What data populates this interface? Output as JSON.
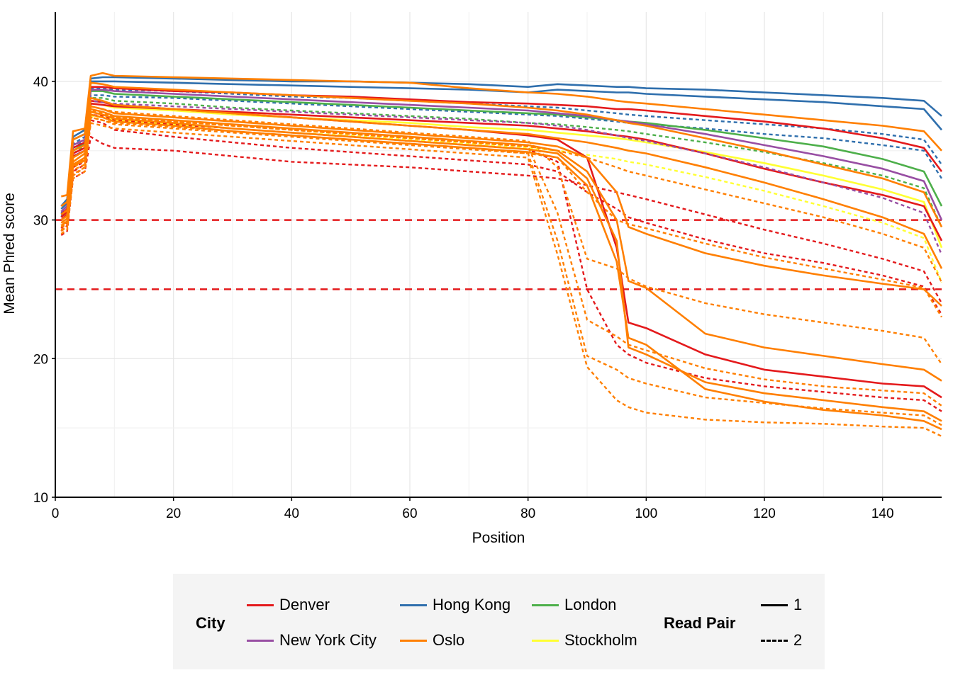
{
  "chart_data": {
    "type": "line",
    "xlabel": "Position",
    "ylabel": "Mean Phred score",
    "xlim": [
      0,
      150
    ],
    "ylim": [
      10,
      45
    ],
    "xticks": [
      0,
      20,
      40,
      60,
      80,
      100,
      120,
      140
    ],
    "yticks": [
      10,
      20,
      30,
      40
    ],
    "grid": true,
    "threshold_lines": [
      {
        "y": 30,
        "color": "#e41a1c",
        "style": "dashed"
      },
      {
        "y": 25,
        "color": "#e41a1c",
        "style": "dashed"
      }
    ],
    "x": [
      1,
      2,
      3,
      5,
      6,
      8,
      10,
      20,
      30,
      40,
      50,
      60,
      70,
      80,
      85,
      90,
      95,
      97,
      100,
      110,
      120,
      130,
      140,
      147,
      150
    ],
    "series": [
      {
        "city": "Hong Kong",
        "read_pair": "1",
        "values": [
          31.0,
          31.5,
          36.0,
          36.5,
          40.2,
          40.3,
          40.3,
          40.2,
          40.1,
          40.0,
          40.0,
          39.9,
          39.8,
          39.6,
          39.8,
          39.7,
          39.6,
          39.6,
          39.5,
          39.4,
          39.2,
          39.0,
          38.8,
          38.6,
          37.5
        ]
      },
      {
        "city": "Hong Kong",
        "read_pair": "1",
        "values": [
          30.8,
          31.2,
          35.8,
          36.2,
          40.0,
          40.0,
          40.0,
          39.9,
          39.8,
          39.7,
          39.6,
          39.5,
          39.4,
          39.2,
          39.4,
          39.3,
          39.2,
          39.2,
          39.1,
          38.9,
          38.7,
          38.5,
          38.2,
          38.0,
          36.5
        ]
      },
      {
        "city": "Hong Kong",
        "read_pair": "2",
        "values": [
          30.5,
          31.0,
          35.5,
          36.0,
          39.5,
          39.5,
          39.4,
          39.3,
          39.1,
          38.9,
          38.8,
          38.6,
          38.4,
          38.2,
          38.1,
          37.9,
          37.7,
          37.6,
          37.5,
          37.2,
          36.9,
          36.6,
          36.2,
          35.8,
          34.0
        ]
      },
      {
        "city": "Hong Kong",
        "read_pair": "2",
        "values": [
          30.3,
          30.7,
          35.2,
          35.7,
          39.0,
          39.0,
          38.9,
          38.8,
          38.6,
          38.4,
          38.2,
          38.0,
          37.8,
          37.6,
          37.5,
          37.3,
          37.1,
          37.0,
          36.9,
          36.6,
          36.2,
          35.9,
          35.4,
          35.0,
          33.0
        ]
      },
      {
        "city": "London",
        "read_pair": "1",
        "values": [
          30.2,
          30.6,
          35.0,
          35.5,
          39.3,
          39.3,
          39.1,
          38.9,
          38.7,
          38.5,
          38.3,
          38.1,
          37.9,
          37.7,
          37.6,
          37.4,
          37.2,
          37.1,
          37.0,
          36.5,
          35.9,
          35.3,
          34.4,
          33.5,
          31.0
        ]
      },
      {
        "city": "London",
        "read_pair": "2",
        "values": [
          30.0,
          30.4,
          34.8,
          35.3,
          38.8,
          38.8,
          38.6,
          38.4,
          38.1,
          37.9,
          37.7,
          37.5,
          37.3,
          37.0,
          36.9,
          36.7,
          36.5,
          36.4,
          36.2,
          35.6,
          34.9,
          34.1,
          33.2,
          32.3,
          29.5
        ]
      },
      {
        "city": "Stockholm",
        "read_pair": "1",
        "values": [
          30.0,
          30.3,
          34.5,
          35.0,
          38.4,
          38.3,
          38.1,
          37.9,
          37.6,
          37.4,
          37.2,
          37.0,
          36.7,
          36.5,
          36.3,
          36.1,
          35.9,
          35.8,
          35.6,
          34.9,
          34.1,
          33.2,
          32.2,
          31.3,
          28.0
        ]
      },
      {
        "city": "Stockholm",
        "read_pair": "2",
        "values": [
          29.5,
          29.8,
          34.0,
          34.5,
          37.5,
          37.4,
          37.2,
          36.9,
          36.6,
          36.3,
          36.1,
          35.8,
          35.5,
          35.2,
          35.0,
          34.7,
          34.4,
          34.2,
          34.0,
          33.1,
          32.1,
          31.0,
          29.8,
          28.7,
          25.5
        ]
      },
      {
        "city": "Denver",
        "read_pair": "1",
        "values": [
          30.4,
          30.8,
          35.2,
          35.6,
          39.6,
          39.6,
          39.5,
          39.3,
          39.2,
          39.0,
          38.9,
          38.7,
          38.5,
          38.4,
          38.3,
          38.2,
          38.0,
          38.0,
          37.9,
          37.5,
          37.1,
          36.6,
          35.9,
          35.2,
          33.5
        ]
      },
      {
        "city": "Denver",
        "read_pair": "1",
        "values": [
          30.0,
          30.4,
          34.6,
          35.0,
          38.4,
          38.3,
          38.2,
          38.0,
          37.8,
          37.6,
          37.4,
          37.2,
          37.0,
          36.8,
          36.6,
          36.4,
          36.1,
          36.0,
          35.8,
          34.8,
          33.7,
          32.7,
          31.8,
          31.0,
          28.5
        ]
      },
      {
        "city": "Denver",
        "read_pair": "1",
        "values": [
          30.2,
          30.6,
          34.8,
          35.2,
          38.6,
          38.5,
          38.3,
          38.0,
          37.7,
          37.4,
          37.1,
          36.8,
          36.5,
          36.1,
          35.8,
          34.5,
          28.0,
          22.6,
          22.2,
          20.3,
          19.2,
          18.7,
          18.2,
          18.0,
          17.2
        ]
      },
      {
        "city": "Denver",
        "read_pair": "2",
        "values": [
          29.2,
          29.6,
          33.5,
          34.0,
          37.2,
          37.0,
          36.5,
          36.0,
          35.6,
          35.2,
          34.9,
          34.6,
          34.3,
          34.0,
          33.5,
          32.0,
          30.8,
          30.2,
          29.8,
          28.6,
          27.6,
          26.9,
          26.0,
          25.2,
          23.2
        ]
      },
      {
        "city": "Denver",
        "read_pair": "2",
        "values": [
          28.9,
          29.2,
          33.0,
          33.5,
          36.0,
          35.5,
          35.2,
          35.0,
          34.6,
          34.2,
          34.0,
          33.8,
          33.5,
          33.2,
          33.0,
          32.5,
          32.0,
          31.8,
          31.5,
          30.4,
          29.3,
          28.3,
          27.2,
          26.3,
          24.0
        ]
      },
      {
        "city": "Denver",
        "read_pair": "2",
        "values": [
          29.4,
          29.8,
          33.8,
          34.2,
          37.6,
          37.5,
          37.2,
          36.9,
          36.6,
          36.3,
          36.0,
          35.7,
          35.4,
          35.1,
          34.2,
          25.0,
          21.0,
          20.3,
          19.7,
          18.6,
          18.0,
          17.6,
          17.2,
          17.0,
          16.2
        ]
      },
      {
        "city": "New York City",
        "read_pair": "1",
        "values": [
          30.6,
          31.0,
          35.4,
          35.8,
          39.4,
          39.4,
          39.3,
          39.1,
          38.9,
          38.7,
          38.5,
          38.3,
          38.1,
          37.9,
          37.7,
          37.5,
          37.2,
          37.1,
          36.9,
          36.2,
          35.4,
          34.6,
          33.7,
          32.8,
          30.0
        ]
      },
      {
        "city": "New York City",
        "read_pair": "2",
        "values": [
          30.0,
          30.3,
          34.6,
          35.0,
          38.6,
          38.5,
          38.4,
          38.2,
          38.0,
          37.8,
          37.6,
          37.4,
          37.2,
          37.0,
          36.8,
          36.5,
          36.1,
          35.9,
          35.7,
          34.8,
          33.8,
          32.7,
          31.6,
          30.5,
          27.5
        ]
      },
      {
        "city": "Oslo",
        "read_pair": "1",
        "values": [
          31.7,
          31.8,
          36.4,
          36.6,
          40.4,
          40.6,
          40.4,
          40.3,
          40.2,
          40.1,
          40.0,
          39.9,
          39.5,
          39.2,
          39.1,
          38.9,
          38.6,
          38.5,
          38.4,
          38.0,
          37.6,
          37.2,
          36.8,
          36.4,
          35.0
        ]
      },
      {
        "city": "Oslo",
        "read_pair": "1",
        "values": [
          31.0,
          31.3,
          35.8,
          36.2,
          39.9,
          39.8,
          39.6,
          39.4,
          39.2,
          39.0,
          38.8,
          38.6,
          38.4,
          38.1,
          37.9,
          37.6,
          37.2,
          37.0,
          36.8,
          35.9,
          35.0,
          34.0,
          33.0,
          32.0,
          29.5
        ]
      },
      {
        "city": "Oslo",
        "read_pair": "1",
        "values": [
          30.4,
          30.7,
          35.0,
          35.4,
          38.8,
          38.6,
          38.3,
          38.0,
          37.7,
          37.4,
          37.1,
          36.8,
          36.5,
          36.2,
          35.9,
          35.6,
          35.2,
          35.0,
          34.8,
          33.8,
          32.7,
          31.5,
          30.2,
          29.0,
          26.5
        ]
      },
      {
        "city": "Oslo",
        "read_pair": "1",
        "values": [
          30.0,
          30.3,
          34.5,
          35.0,
          38.2,
          38.0,
          37.7,
          37.4,
          37.1,
          36.8,
          36.5,
          36.2,
          35.9,
          35.6,
          35.3,
          34.5,
          32.0,
          29.5,
          29.0,
          27.6,
          26.7,
          26.0,
          25.4,
          25.0,
          23.8
        ]
      },
      {
        "city": "Oslo",
        "read_pair": "1",
        "values": [
          29.8,
          30.1,
          34.2,
          34.8,
          38.0,
          37.8,
          37.5,
          37.2,
          36.9,
          36.6,
          36.3,
          36.0,
          35.7,
          35.4,
          35.0,
          33.5,
          30.0,
          25.6,
          25.1,
          21.8,
          20.8,
          20.2,
          19.6,
          19.2,
          18.4
        ]
      },
      {
        "city": "Oslo",
        "read_pair": "1",
        "values": [
          29.6,
          29.9,
          34.0,
          34.5,
          37.8,
          37.6,
          37.3,
          37.0,
          36.6,
          36.3,
          36.0,
          35.7,
          35.4,
          35.1,
          34.8,
          33.0,
          28.5,
          20.8,
          20.3,
          18.3,
          17.5,
          17.0,
          16.5,
          16.2,
          15.5
        ]
      },
      {
        "city": "Oslo",
        "read_pair": "1",
        "values": [
          29.6,
          29.9,
          33.9,
          34.3,
          37.6,
          37.4,
          37.1,
          36.8,
          36.4,
          36.1,
          35.8,
          35.5,
          35.2,
          34.9,
          34.5,
          32.5,
          27.0,
          21.5,
          21.0,
          17.8,
          16.9,
          16.3,
          15.9,
          15.5,
          14.9
        ]
      },
      {
        "city": "Oslo",
        "read_pair": "2",
        "values": [
          29.8,
          30.0,
          34.0,
          34.4,
          38.2,
          38.0,
          37.8,
          37.5,
          37.2,
          36.9,
          36.6,
          36.3,
          36.0,
          35.7,
          33.8,
          27.2,
          26.5,
          25.8,
          25.2,
          24.0,
          23.2,
          22.6,
          22.0,
          21.5,
          19.6
        ]
      },
      {
        "city": "Oslo",
        "read_pair": "2",
        "values": [
          29.5,
          29.7,
          33.6,
          34.0,
          37.8,
          37.6,
          37.4,
          37.1,
          36.8,
          36.5,
          36.2,
          35.9,
          35.6,
          35.3,
          30.5,
          22.8,
          21.6,
          21.0,
          20.6,
          19.3,
          18.5,
          18.0,
          17.7,
          17.5,
          16.6
        ]
      },
      {
        "city": "Oslo",
        "read_pair": "2",
        "values": [
          29.3,
          29.5,
          33.2,
          33.8,
          37.4,
          37.2,
          37.0,
          36.7,
          36.4,
          36.1,
          35.8,
          35.5,
          35.2,
          34.8,
          28.5,
          20.2,
          19.2,
          18.6,
          18.2,
          17.2,
          16.8,
          16.4,
          16.1,
          15.9,
          15.2
        ]
      },
      {
        "city": "Oslo",
        "read_pair": "2",
        "values": [
          29.0,
          29.3,
          33.0,
          33.5,
          37.0,
          36.8,
          36.6,
          36.3,
          36.0,
          35.7,
          35.4,
          35.1,
          34.8,
          34.5,
          27.5,
          19.4,
          17.0,
          16.5,
          16.1,
          15.6,
          15.4,
          15.3,
          15.1,
          15.0,
          14.4
        ]
      },
      {
        "city": "Oslo",
        "read_pair": "2",
        "values": [
          29.2,
          29.5,
          33.3,
          33.8,
          37.4,
          37.2,
          36.9,
          36.6,
          36.3,
          36.0,
          35.7,
          35.4,
          35.1,
          34.8,
          34.5,
          32.0,
          30.0,
          29.7,
          29.4,
          28.3,
          27.3,
          26.5,
          25.7,
          25.1,
          23.0
        ]
      },
      {
        "city": "Oslo",
        "read_pair": "2",
        "values": [
          29.6,
          29.9,
          33.8,
          34.3,
          37.9,
          37.7,
          37.4,
          37.1,
          36.8,
          36.5,
          36.2,
          35.9,
          35.6,
          35.3,
          35.0,
          34.5,
          33.8,
          33.5,
          33.2,
          32.2,
          31.2,
          30.2,
          29.0,
          28.0,
          25.5
        ]
      }
    ]
  },
  "legend": {
    "city_title": "City",
    "read_pair_title": "Read Pair",
    "cities": [
      {
        "label": "Denver",
        "color": "#e41a1c"
      },
      {
        "label": "Hong Kong",
        "color": "#2f6fad"
      },
      {
        "label": "London",
        "color": "#4daf4a"
      },
      {
        "label": "New York City",
        "color": "#984ea3"
      },
      {
        "label": "Oslo",
        "color": "#ff7f00"
      },
      {
        "label": "Stockholm",
        "color": "#ffff33"
      }
    ],
    "read_pairs": [
      {
        "label": "1",
        "style": "solid"
      },
      {
        "label": "2",
        "style": "dashed"
      }
    ]
  }
}
